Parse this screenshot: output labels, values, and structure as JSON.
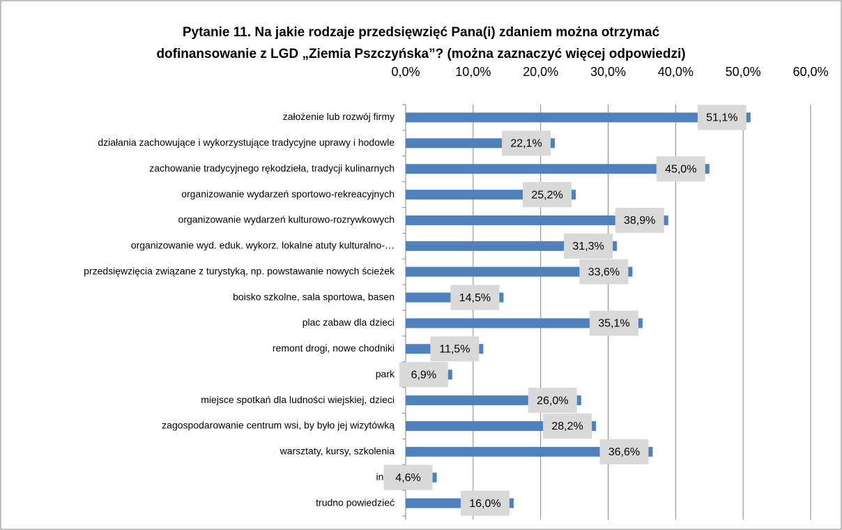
{
  "chart_data": {
    "type": "bar",
    "orientation": "horizontal",
    "title": [
      "Pytanie 11. Na jakie rodzaje przedsięwzięć Pana(i) zdaniem można otrzymać",
      "dofinansowanie z LGD „Ziemia Pszczyńska”? (można zaznaczyć więcej odpowiedzi)"
    ],
    "categories": [
      "założenie lub rozwój firmy",
      "działania zachowujące i wykorzystujące tradycyjne uprawy i hodowle",
      "zachowanie tradycyjnego rękodzieła, tradycji kulinarnych",
      "organizowanie wydarzeń sportowo-rekreacyjnych",
      "organizowanie wydarzeń kulturowo-rozrywkowych",
      "organizowanie wyd. eduk. wykorz. lokalne atuty kulturalno-…",
      "przedsięwzięcia związane z turystyką, np. powstawanie nowych ścieżek",
      "boisko szkolne, sala sportowa, basen",
      "plac zabaw dla dzieci",
      "remont drogi, nowe chodniki",
      "park",
      "miejsce spotkań dla ludności wiejskiej, dzieci",
      "zagospodarowanie centrum wsi, by było jej wizytówką",
      "warsztaty, kursy, szkolenia",
      "inne",
      "trudno powiedzieć"
    ],
    "values": [
      51.1,
      22.1,
      45.0,
      25.2,
      38.9,
      31.3,
      33.6,
      14.5,
      35.1,
      11.5,
      6.9,
      26.0,
      28.2,
      36.6,
      4.6,
      16.0
    ],
    "value_labels": [
      "51,1%",
      "22,1%",
      "45,0%",
      "25,2%",
      "38,9%",
      "31,3%",
      "33,6%",
      "14,5%",
      "35,1%",
      "11,5%",
      "6,9%",
      "26,0%",
      "28,2%",
      "36,6%",
      "4,6%",
      "16,0%"
    ],
    "color": "#4f81bd",
    "xlim": [
      0,
      60
    ],
    "xticks": [
      {
        "value": 0,
        "label": "0,0%"
      },
      {
        "value": 10,
        "label": "10,0%"
      },
      {
        "value": 20,
        "label": "20,0%"
      },
      {
        "value": 30,
        "label": "30,0%"
      },
      {
        "value": 40,
        "label": "40,0%"
      },
      {
        "value": 50,
        "label": "50,0%"
      },
      {
        "value": 60,
        "label": "60,0%"
      }
    ],
    "grid": true
  }
}
